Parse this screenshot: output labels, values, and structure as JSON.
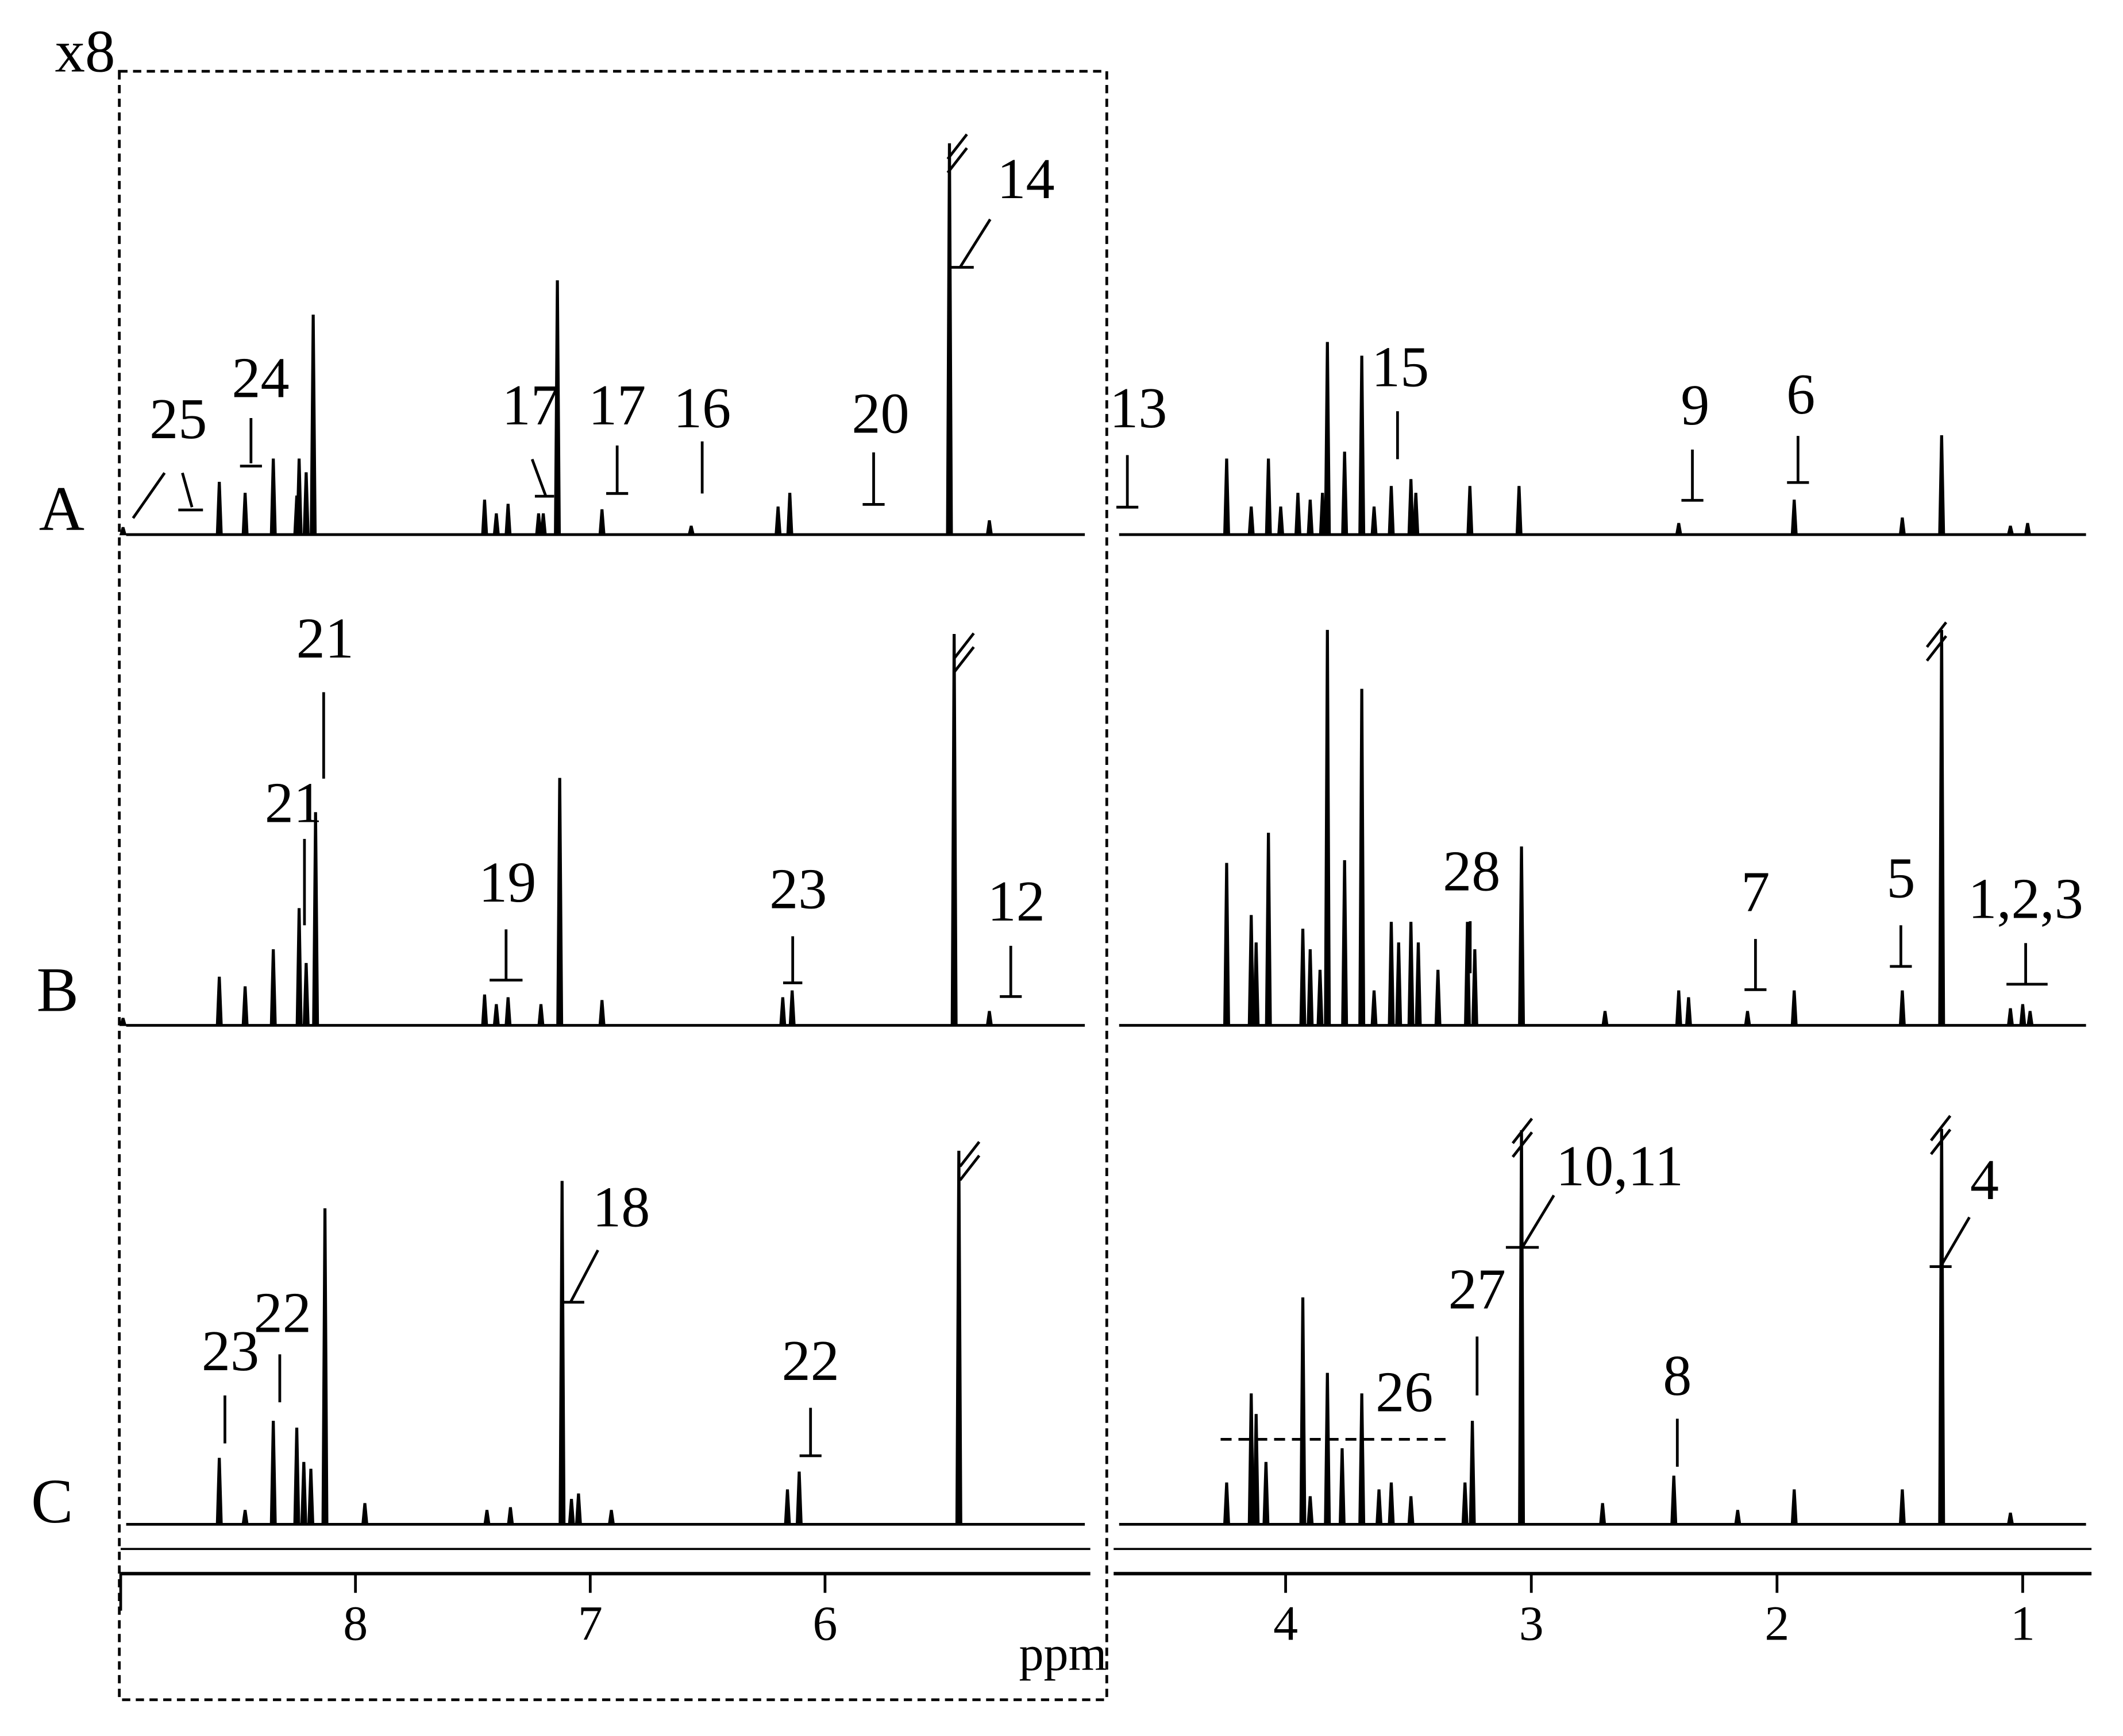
{
  "chart_data": {
    "type": "spectrum",
    "scale_label": "x8",
    "x_label": "ppm",
    "color": "#000000",
    "panels": [
      {
        "xlim": [
          9.0,
          4.87
        ],
        "xticks": [
          8,
          7,
          6
        ]
      },
      {
        "xlim": [
          4.7,
          0.72
        ],
        "xticks": [
          4,
          3,
          2,
          1
        ]
      }
    ],
    "series": [
      {
        "name": "A",
        "x": [
          8.99,
          8.58,
          8.47,
          8.35,
          8.25,
          8.24,
          8.21,
          8.18,
          7.45,
          7.4,
          7.35,
          7.22,
          7.2,
          7.14,
          6.95,
          6.57,
          6.2,
          6.15,
          5.47,
          5.3,
          4.24,
          4.14,
          4.07,
          4.02,
          3.95,
          3.9,
          3.85,
          3.83,
          3.76,
          3.69,
          3.64,
          3.57,
          3.49,
          3.47,
          3.25,
          3.05,
          2.4,
          1.93,
          1.49,
          1.33,
          1.05,
          0.98
        ],
        "values": [
          5,
          38,
          30,
          55,
          28,
          55,
          45,
          160,
          25,
          15,
          22,
          15,
          15,
          185,
          18,
          6,
          20,
          30,
          285,
          10,
          55,
          20,
          55,
          20,
          30,
          25,
          30,
          140,
          60,
          130,
          20,
          35,
          40,
          30,
          35,
          35,
          8,
          25,
          12,
          72,
          6,
          8
        ],
        "annotations": [
          "25",
          "24",
          "17",
          "17",
          "16",
          "20",
          "14",
          "13",
          "15",
          "9",
          "6"
        ]
      },
      {
        "name": "B",
        "x": [
          8.99,
          8.58,
          8.47,
          8.35,
          8.24,
          8.21,
          8.17,
          7.45,
          7.4,
          7.35,
          7.21,
          7.13,
          6.95,
          6.18,
          6.14,
          5.45,
          5.3,
          4.24,
          4.14,
          4.12,
          4.07,
          3.93,
          3.9,
          3.86,
          3.83,
          3.76,
          3.69,
          3.64,
          3.57,
          3.54,
          3.49,
          3.46,
          3.38,
          3.26,
          3.23,
          3.04,
          2.7,
          2.4,
          2.36,
          2.12,
          1.93,
          1.49,
          1.33,
          1.05,
          1.0,
          0.97
        ],
        "values": [
          5,
          35,
          28,
          55,
          85,
          45,
          155,
          22,
          15,
          20,
          15,
          180,
          18,
          20,
          25,
          285,
          10,
          118,
          80,
          60,
          140,
          70,
          55,
          40,
          288,
          120,
          245,
          25,
          75,
          60,
          75,
          60,
          40,
          75,
          55,
          130,
          10,
          25,
          20,
          10,
          25,
          25,
          288,
          12,
          15,
          10
        ],
        "annotations": [
          "21",
          "21",
          "19",
          "23",
          "12",
          "28",
          "7",
          "5",
          "1,2,3"
        ]
      },
      {
        "name": "C",
        "x": [
          8.58,
          8.47,
          8.35,
          8.25,
          8.22,
          8.19,
          8.13,
          7.96,
          7.44,
          7.34,
          7.12,
          7.08,
          7.05,
          6.91,
          6.16,
          6.11,
          5.43,
          4.24,
          4.14,
          4.12,
          4.08,
          3.93,
          3.9,
          3.83,
          3.77,
          3.69,
          3.62,
          3.57,
          3.49,
          3.27,
          3.24,
          3.04,
          2.71,
          2.42,
          2.16,
          1.93,
          1.49,
          1.33,
          1.05
        ],
        "values": [
          48,
          10,
          75,
          70,
          45,
          40,
          230,
          15,
          10,
          12,
          250,
          18,
          22,
          10,
          25,
          38,
          272,
          30,
          95,
          80,
          45,
          165,
          20,
          110,
          55,
          95,
          25,
          30,
          20,
          30,
          75,
          287,
          15,
          35,
          10,
          25,
          25,
          288,
          8
        ],
        "annotations": [
          "23",
          "22",
          "18",
          "22",
          "26",
          "27",
          "10,11",
          "8",
          "4"
        ]
      }
    ]
  }
}
